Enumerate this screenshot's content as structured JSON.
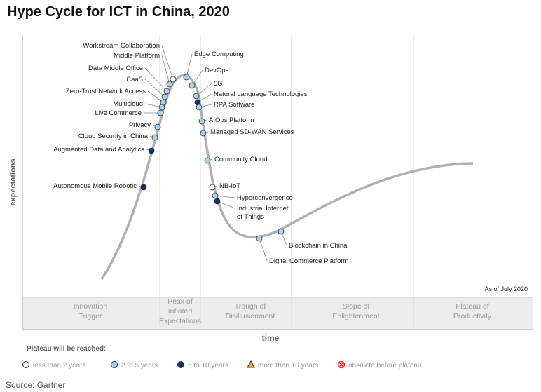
{
  "title": "Hype Cycle for ICT in China, 2020",
  "y_axis_label": "expectations",
  "x_axis_label": "time",
  "as_of": "As of July 2020",
  "phases": [
    [
      "Innovation",
      "Trigger"
    ],
    [
      "Peak of",
      "Inflated",
      "Expectations"
    ],
    [
      "Trough of",
      "Disillusionment"
    ],
    [
      "Slope of",
      "Enlightenment"
    ],
    [
      "Plateau of",
      "Productivity"
    ]
  ],
  "legend": {
    "title": "Plateau will be reached:",
    "items": [
      {
        "label": "less than 2 years",
        "shape": "circle",
        "color": "#ffffff"
      },
      {
        "label": "2 to 5 years",
        "shape": "circle",
        "color": "#a8d0f0"
      },
      {
        "label": "5 to 10 years",
        "shape": "circle",
        "color": "#0b2f7a"
      },
      {
        "label": "more than 10 years",
        "shape": "triangle",
        "color": "#f0a020"
      },
      {
        "label": "obsolete before plateau",
        "shape": "x-circle",
        "color": "#e03040"
      }
    ]
  },
  "source": "Source: Gartner",
  "technologies": [
    {
      "name": "Workstream Collaboration",
      "plateau": "less than 2 years"
    },
    {
      "name": "Middle Platform",
      "plateau": "2 to 5 years"
    },
    {
      "name": "Data Middle Office",
      "plateau": "2 to 5 years"
    },
    {
      "name": "CaaS",
      "plateau": "2 to 5 years"
    },
    {
      "name": "Zero-Trust Network Access",
      "plateau": "2 to 5 years"
    },
    {
      "name": "Multicloud",
      "plateau": "2 to 5 years"
    },
    {
      "name": "Live Commerce",
      "plateau": "2 to 5 years"
    },
    {
      "name": "Privacy",
      "plateau": "2 to 5 years"
    },
    {
      "name": "Cloud Security in China",
      "plateau": "2 to 5 years"
    },
    {
      "name": "Augmented Data and Analytics",
      "plateau": "5 to 10 years"
    },
    {
      "name": "Autonomous Mobile Robotic",
      "plateau": "5 to 10 years"
    },
    {
      "name": "Edge Computing",
      "plateau": "2 to 5 years"
    },
    {
      "name": "DevOps",
      "plateau": "2 to 5 years"
    },
    {
      "name": "5G",
      "plateau": "2 to 5 years"
    },
    {
      "name": "Natural Language Technologies",
      "plateau": "5 to 10 years"
    },
    {
      "name": "RPA Software",
      "plateau": "2 to 5 years"
    },
    {
      "name": "AIOps Platform",
      "plateau": "2 to 5 years"
    },
    {
      "name": "Managed SD-WAN Services",
      "plateau": "2 to 5 years"
    },
    {
      "name": "Community Cloud",
      "plateau": "2 to 5 years"
    },
    {
      "name": "NB-IoT",
      "plateau": "less than 2 years"
    },
    {
      "name": "Hyperconvergence",
      "plateau": "2 to 5 years"
    },
    {
      "name": "Industrial Internet of Things",
      "plateau": "5 to 10 years"
    },
    {
      "name": "Digital Commerce Platform",
      "plateau": "2 to 5 years"
    },
    {
      "name": "Blockchain in China",
      "plateau": "2 to 5 years"
    }
  ]
}
